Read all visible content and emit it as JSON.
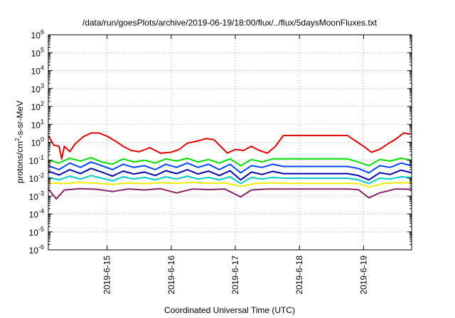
{
  "chart_data": {
    "type": "line",
    "title": "/data/run/goesPlots/archive/2019-06-19/18:00/flux/../flux/5daysMoonFluxes.txt",
    "xlabel": "Coordinated Universal Time (UTC)",
    "ylabel": {
      "base": "protons/cm",
      "sup": "2",
      "rest": "-s-sr-MeV"
    },
    "yscale": "log",
    "ylim_exp": [
      -6,
      6
    ],
    "y_tick_exponents": [
      -6,
      -5,
      -4,
      -3,
      -2,
      -1,
      0,
      1,
      2,
      3,
      4,
      5,
      6
    ],
    "y_tick_base": "10",
    "xlim": [
      "2019-06-14T02:00",
      "2019-06-19T18:00"
    ],
    "x_ticks": [
      {
        "label": "2019-6-15",
        "t": "2019-06-15T00:00"
      },
      {
        "label": "2019-6-16",
        "t": "2019-06-16T00:00"
      },
      {
        "label": "2019-6-17",
        "t": "2019-06-17T00:00"
      },
      {
        "label": "2019-6-18",
        "t": "2019-06-18T00:00"
      },
      {
        "label": "2019-6-19",
        "t": "2019-06-19T00:00"
      }
    ],
    "grid": true,
    "data_gap": [
      "2019-06-17T18:00",
      "2019-06-18T18:00"
    ],
    "series": [
      {
        "color": "#dd0000",
        "values": [
          [
            "2019-06-14T02:00",
            2.3
          ],
          [
            "2019-06-14T04:00",
            0.7
          ],
          [
            "2019-06-14T06:00",
            0.6
          ],
          [
            "2019-06-14T07:00",
            0.12
          ],
          [
            "2019-06-14T08:00",
            0.6
          ],
          [
            "2019-06-14T10:00",
            0.3
          ],
          [
            "2019-06-14T12:00",
            0.8
          ],
          [
            "2019-06-14T15:00",
            2
          ],
          [
            "2019-06-14T18:00",
            3.3
          ],
          [
            "2019-06-14T21:00",
            3.3
          ],
          [
            "2019-06-15T00:00",
            2.2
          ],
          [
            "2019-06-15T03:00",
            1.2
          ],
          [
            "2019-06-15T06:00",
            0.6
          ],
          [
            "2019-06-15T09:00",
            0.35
          ],
          [
            "2019-06-15T12:00",
            0.3
          ],
          [
            "2019-06-15T16:00",
            0.5
          ],
          [
            "2019-06-15T20:00",
            0.25
          ],
          [
            "2019-06-16T00:00",
            0.28
          ],
          [
            "2019-06-16T03:00",
            0.4
          ],
          [
            "2019-06-16T06:00",
            0.9
          ],
          [
            "2019-06-16T10:00",
            1.2
          ],
          [
            "2019-06-16T13:00",
            1.6
          ],
          [
            "2019-06-16T16:00",
            1.4
          ],
          [
            "2019-06-16T19:00",
            0.5
          ],
          [
            "2019-06-16T21:00",
            0.25
          ],
          [
            "2019-06-17T00:00",
            0.4
          ],
          [
            "2019-06-17T03:00",
            0.35
          ],
          [
            "2019-06-17T06:00",
            0.6
          ],
          [
            "2019-06-17T09:00",
            0.35
          ],
          [
            "2019-06-17T12:00",
            0.25
          ],
          [
            "2019-06-17T15:00",
            0.6
          ],
          [
            "2019-06-17T18:00",
            2.4
          ],
          [
            "2019-06-18T18:00",
            2.4
          ],
          [
            "2019-06-18T21:00",
            1.2
          ],
          [
            "2019-06-19T00:00",
            0.6
          ],
          [
            "2019-06-19T03:00",
            0.28
          ],
          [
            "2019-06-19T06:00",
            0.4
          ],
          [
            "2019-06-19T09:00",
            0.8
          ],
          [
            "2019-06-19T12:00",
            1.5
          ],
          [
            "2019-06-19T15:00",
            3.3
          ],
          [
            "2019-06-19T18:00",
            2.8
          ]
        ]
      },
      {
        "color": "#00dd00",
        "values": [
          [
            "2019-06-14T02:00",
            0.1
          ],
          [
            "2019-06-14T06:00",
            0.07
          ],
          [
            "2019-06-14T10:00",
            0.13
          ],
          [
            "2019-06-14T14:00",
            0.09
          ],
          [
            "2019-06-14T18:00",
            0.14
          ],
          [
            "2019-06-14T22:00",
            0.08
          ],
          [
            "2019-06-15T02:00",
            0.06
          ],
          [
            "2019-06-15T06:00",
            0.12
          ],
          [
            "2019-06-15T10:00",
            0.08
          ],
          [
            "2019-06-15T14:00",
            0.1
          ],
          [
            "2019-06-15T18:00",
            0.07
          ],
          [
            "2019-06-15T22:00",
            0.12
          ],
          [
            "2019-06-16T02:00",
            0.09
          ],
          [
            "2019-06-16T06:00",
            0.13
          ],
          [
            "2019-06-16T10:00",
            0.08
          ],
          [
            "2019-06-16T14:00",
            0.11
          ],
          [
            "2019-06-16T18:00",
            0.07
          ],
          [
            "2019-06-16T22:00",
            0.12
          ],
          [
            "2019-06-17T02:00",
            0.05
          ],
          [
            "2019-06-17T06:00",
            0.11
          ],
          [
            "2019-06-17T10:00",
            0.08
          ],
          [
            "2019-06-17T14:00",
            0.12
          ],
          [
            "2019-06-17T18:00",
            0.12
          ],
          [
            "2019-06-18T18:00",
            0.12
          ],
          [
            "2019-06-18T22:00",
            0.08
          ],
          [
            "2019-06-19T02:00",
            0.05
          ],
          [
            "2019-06-19T06:00",
            0.11
          ],
          [
            "2019-06-19T10:00",
            0.09
          ],
          [
            "2019-06-19T14:00",
            0.13
          ],
          [
            "2019-06-19T18:00",
            0.1
          ]
        ]
      },
      {
        "color": "#0044ff",
        "values": [
          [
            "2019-06-14T02:00",
            0.05
          ],
          [
            "2019-06-14T06:00",
            0.03
          ],
          [
            "2019-06-14T10:00",
            0.07
          ],
          [
            "2019-06-14T14:00",
            0.04
          ],
          [
            "2019-06-14T18:00",
            0.08
          ],
          [
            "2019-06-14T22:00",
            0.05
          ],
          [
            "2019-06-15T02:00",
            0.03
          ],
          [
            "2019-06-15T06:00",
            0.06
          ],
          [
            "2019-06-15T10:00",
            0.04
          ],
          [
            "2019-06-15T14:00",
            0.05
          ],
          [
            "2019-06-15T18:00",
            0.03
          ],
          [
            "2019-06-15T22:00",
            0.06
          ],
          [
            "2019-06-16T02:00",
            0.04
          ],
          [
            "2019-06-16T06:00",
            0.07
          ],
          [
            "2019-06-16T10:00",
            0.04
          ],
          [
            "2019-06-16T14:00",
            0.06
          ],
          [
            "2019-06-16T18:00",
            0.03
          ],
          [
            "2019-06-16T22:00",
            0.06
          ],
          [
            "2019-06-17T02:00",
            0.02
          ],
          [
            "2019-06-17T06:00",
            0.05
          ],
          [
            "2019-06-17T10:00",
            0.04
          ],
          [
            "2019-06-17T14:00",
            0.06
          ],
          [
            "2019-06-17T18:00",
            0.045
          ],
          [
            "2019-06-18T18:00",
            0.045
          ],
          [
            "2019-06-18T22:00",
            0.035
          ],
          [
            "2019-06-19T02:00",
            0.02
          ],
          [
            "2019-06-19T06:00",
            0.05
          ],
          [
            "2019-06-19T10:00",
            0.04
          ],
          [
            "2019-06-19T14:00",
            0.07
          ],
          [
            "2019-06-19T18:00",
            0.05
          ]
        ]
      },
      {
        "color": "#0000aa",
        "values": [
          [
            "2019-06-14T02:00",
            0.025
          ],
          [
            "2019-06-14T06:00",
            0.015
          ],
          [
            "2019-06-14T10:00",
            0.03
          ],
          [
            "2019-06-14T14:00",
            0.018
          ],
          [
            "2019-06-14T18:00",
            0.035
          ],
          [
            "2019-06-14T22:00",
            0.022
          ],
          [
            "2019-06-15T02:00",
            0.013
          ],
          [
            "2019-06-15T06:00",
            0.025
          ],
          [
            "2019-06-15T10:00",
            0.017
          ],
          [
            "2019-06-15T14:00",
            0.022
          ],
          [
            "2019-06-15T18:00",
            0.014
          ],
          [
            "2019-06-15T22:00",
            0.026
          ],
          [
            "2019-06-16T02:00",
            0.018
          ],
          [
            "2019-06-16T06:00",
            0.03
          ],
          [
            "2019-06-16T10:00",
            0.017
          ],
          [
            "2019-06-16T14:00",
            0.025
          ],
          [
            "2019-06-16T18:00",
            0.014
          ],
          [
            "2019-06-16T22:00",
            0.026
          ],
          [
            "2019-06-17T02:00",
            0.008
          ],
          [
            "2019-06-17T06:00",
            0.022
          ],
          [
            "2019-06-17T10:00",
            0.016
          ],
          [
            "2019-06-17T14:00",
            0.024
          ],
          [
            "2019-06-17T18:00",
            0.018
          ],
          [
            "2019-06-18T18:00",
            0.018
          ],
          [
            "2019-06-18T22:00",
            0.014
          ],
          [
            "2019-06-19T02:00",
            0.008
          ],
          [
            "2019-06-19T06:00",
            0.02
          ],
          [
            "2019-06-19T10:00",
            0.016
          ],
          [
            "2019-06-19T14:00",
            0.028
          ],
          [
            "2019-06-19T18:00",
            0.02
          ]
        ]
      },
      {
        "color": "#00cccc",
        "values": [
          [
            "2019-06-14T02:00",
            0.011
          ],
          [
            "2019-06-14T06:00",
            0.008
          ],
          [
            "2019-06-14T10:00",
            0.013
          ],
          [
            "2019-06-14T14:00",
            0.009
          ],
          [
            "2019-06-14T18:00",
            0.014
          ],
          [
            "2019-06-14T22:00",
            0.01
          ],
          [
            "2019-06-15T02:00",
            0.007
          ],
          [
            "2019-06-15T06:00",
            0.012
          ],
          [
            "2019-06-15T10:00",
            0.009
          ],
          [
            "2019-06-15T14:00",
            0.011
          ],
          [
            "2019-06-15T18:00",
            0.008
          ],
          [
            "2019-06-15T22:00",
            0.012
          ],
          [
            "2019-06-16T02:00",
            0.009
          ],
          [
            "2019-06-16T06:00",
            0.013
          ],
          [
            "2019-06-16T10:00",
            0.009
          ],
          [
            "2019-06-16T14:00",
            0.011
          ],
          [
            "2019-06-16T18:00",
            0.008
          ],
          [
            "2019-06-16T22:00",
            0.012
          ],
          [
            "2019-06-17T02:00",
            0.005
          ],
          [
            "2019-06-17T06:00",
            0.011
          ],
          [
            "2019-06-17T10:00",
            0.009
          ],
          [
            "2019-06-17T14:00",
            0.011
          ],
          [
            "2019-06-17T18:00",
            0.01
          ],
          [
            "2019-06-18T18:00",
            0.01
          ],
          [
            "2019-06-18T22:00",
            0.008
          ],
          [
            "2019-06-19T02:00",
            0.005
          ],
          [
            "2019-06-19T06:00",
            0.01
          ],
          [
            "2019-06-19T10:00",
            0.009
          ],
          [
            "2019-06-19T14:00",
            0.012
          ],
          [
            "2019-06-19T18:00",
            0.011
          ]
        ]
      },
      {
        "color": "#eeee00",
        "values": [
          [
            "2019-06-14T02:00",
            0.0055
          ],
          [
            "2019-06-14T08:00",
            0.005
          ],
          [
            "2019-06-14T14:00",
            0.0058
          ],
          [
            "2019-06-14T20:00",
            0.0052
          ],
          [
            "2019-06-15T02:00",
            0.0045
          ],
          [
            "2019-06-15T08:00",
            0.0055
          ],
          [
            "2019-06-15T14:00",
            0.005
          ],
          [
            "2019-06-15T20:00",
            0.0056
          ],
          [
            "2019-06-16T02:00",
            0.0052
          ],
          [
            "2019-06-16T08:00",
            0.0058
          ],
          [
            "2019-06-16T14:00",
            0.0052
          ],
          [
            "2019-06-16T20:00",
            0.0055
          ],
          [
            "2019-06-17T02:00",
            0.0035
          ],
          [
            "2019-06-17T08:00",
            0.0052
          ],
          [
            "2019-06-17T14:00",
            0.0055
          ],
          [
            "2019-06-17T18:00",
            0.0052
          ],
          [
            "2019-06-18T18:00",
            0.0052
          ],
          [
            "2019-06-18T22:00",
            0.005
          ],
          [
            "2019-06-19T02:00",
            0.0032
          ],
          [
            "2019-06-19T08:00",
            0.0052
          ],
          [
            "2019-06-19T14:00",
            0.0056
          ],
          [
            "2019-06-19T18:00",
            0.0055
          ]
        ]
      },
      {
        "color": "#882266",
        "values": [
          [
            "2019-06-14T02:00",
            0.0025
          ],
          [
            "2019-06-14T05:00",
            0.0007
          ],
          [
            "2019-06-14T08:00",
            0.0022
          ],
          [
            "2019-06-14T14:00",
            0.0026
          ],
          [
            "2019-06-14T20:00",
            0.0024
          ],
          [
            "2019-06-15T02:00",
            0.0018
          ],
          [
            "2019-06-15T08:00",
            0.0025
          ],
          [
            "2019-06-15T14:00",
            0.0022
          ],
          [
            "2019-06-15T20:00",
            0.0026
          ],
          [
            "2019-06-16T02:00",
            0.0015
          ],
          [
            "2019-06-16T08:00",
            0.0025
          ],
          [
            "2019-06-16T14:00",
            0.0023
          ],
          [
            "2019-06-16T20:00",
            0.0025
          ],
          [
            "2019-06-17T02:00",
            0.0009
          ],
          [
            "2019-06-17T06:00",
            0.0022
          ],
          [
            "2019-06-17T12:00",
            0.0025
          ],
          [
            "2019-06-17T18:00",
            0.0025
          ],
          [
            "2019-06-18T18:00",
            0.0025
          ],
          [
            "2019-06-18T22:00",
            0.0023
          ],
          [
            "2019-06-19T02:00",
            0.0008
          ],
          [
            "2019-06-19T06:00",
            0.0015
          ],
          [
            "2019-06-19T12:00",
            0.0025
          ],
          [
            "2019-06-19T18:00",
            0.0024
          ]
        ]
      }
    ]
  }
}
